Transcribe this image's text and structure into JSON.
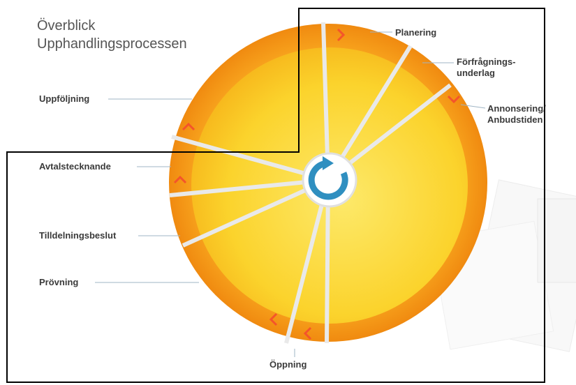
{
  "header": {
    "title": [
      "Överblick",
      "Upphandlingsprocessen"
    ]
  },
  "steps": [
    {
      "label": [
        "Planering"
      ]
    },
    {
      "label": [
        "Förfrågnings-",
        "underlag"
      ]
    },
    {
      "label": [
        "Annonsering/",
        "Anbudstiden"
      ]
    },
    {
      "label": [
        "Öppning"
      ]
    },
    {
      "label": [
        "Prövning"
      ]
    },
    {
      "label": [
        "Tilldelningsbeslut"
      ]
    },
    {
      "label": [
        "Avtalstecknande"
      ]
    },
    {
      "label": [
        "Uppföljning"
      ]
    }
  ]
}
